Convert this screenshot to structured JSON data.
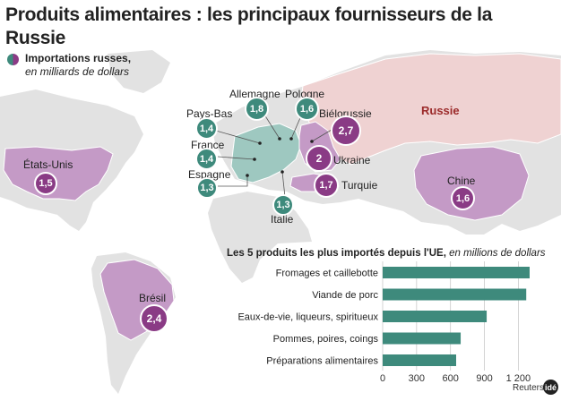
{
  "title": "Produits alimentaires : les principaux fournisseurs de la Russie",
  "legend": {
    "line1": "Importations russes,",
    "line2": "en milliards de dollars"
  },
  "russia_label": "Russie",
  "countries": [
    {
      "key": "allemagne",
      "name": "Allemagne",
      "value": "1,8",
      "color": "teal"
    },
    {
      "key": "pologne",
      "name": "Pologne",
      "value": "1,6",
      "color": "teal"
    },
    {
      "key": "pays-bas",
      "name": "Pays-Bas",
      "value": "1,4",
      "color": "teal"
    },
    {
      "key": "france",
      "name": "France",
      "value": "1,4",
      "color": "teal"
    },
    {
      "key": "espagne",
      "name": "Espagne",
      "value": "1,3",
      "color": "teal"
    },
    {
      "key": "italie",
      "name": "Italie",
      "value": "1,3",
      "color": "teal"
    },
    {
      "key": "bielorussie",
      "name": "Biélorussie",
      "value": "2,7",
      "color": "purple"
    },
    {
      "key": "ukraine",
      "name": "Ukraine",
      "value": "2",
      "color": "purple"
    },
    {
      "key": "turquie",
      "name": "Turquie",
      "value": "1,7",
      "color": "purple"
    },
    {
      "key": "etats-unis",
      "name": "États-Unis",
      "value": "1,5",
      "color": "purple"
    },
    {
      "key": "chine",
      "name": "Chine",
      "value": "1,6",
      "color": "purple"
    },
    {
      "key": "bresil",
      "name": "Brésil",
      "value": "2,4",
      "color": "purple"
    }
  ],
  "colors": {
    "teal": "#3e8a7c",
    "purple": "#8a3b85",
    "europe_fill": "#9ec8c0",
    "importer_fill": "#c49ac6",
    "russia_fill": "#efd2d2",
    "land": "#e2e2e2",
    "ocean": "#ffffff",
    "bar": "#3e8a7c"
  },
  "chart_data": {
    "type": "bar",
    "orientation": "horizontal",
    "title": "Les 5 produits les plus importés depuis l'UE,",
    "unit": "en millions de dollars",
    "categories": [
      "Fromages et caillebotte",
      "Viande de porc",
      "Eaux-de-vie, liqueurs, spiritueux",
      "Pommes, poires, coings",
      "Préparations alimentaires"
    ],
    "values": [
      1300,
      1270,
      920,
      690,
      650
    ],
    "xlim": [
      0,
      1300
    ],
    "xticks": [
      0,
      300,
      600,
      900,
      1200
    ],
    "xtick_labels": [
      "0",
      "300",
      "600",
      "900",
      "1 200"
    ],
    "grid": true
  },
  "source": "Reuters",
  "logo": "idé"
}
